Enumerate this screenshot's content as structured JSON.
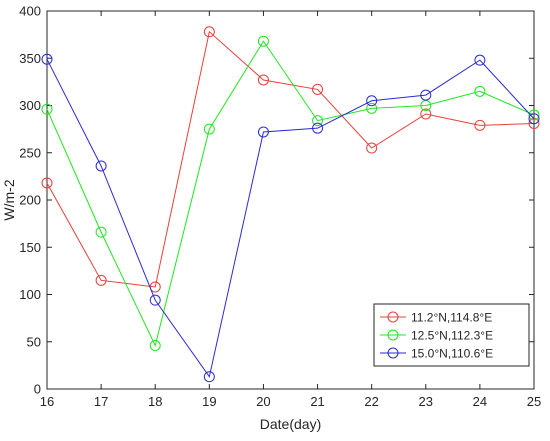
{
  "chart_data": {
    "type": "line",
    "title": "",
    "xlabel": "Date(day)",
    "ylabel": "W/m-2",
    "xlim": [
      16,
      25
    ],
    "ylim": [
      0,
      400
    ],
    "x": [
      16,
      17,
      18,
      19,
      20,
      21,
      22,
      23,
      24,
      25
    ],
    "xticks": [
      "16",
      "17",
      "18",
      "19",
      "20",
      "21",
      "22",
      "23",
      "24",
      "25"
    ],
    "yticks": [
      "0",
      "50",
      "100",
      "150",
      "200",
      "250",
      "300",
      "350",
      "400"
    ],
    "grid": false,
    "legend_position": "bottom-right",
    "marker": "open-circle",
    "series": [
      {
        "name": "11.2°N,114.8°E",
        "color": "#e8403a",
        "values": [
          218,
          115,
          108,
          378,
          327,
          317,
          255,
          291,
          279,
          281
        ]
      },
      {
        "name": "12.5°N,112.3°E",
        "color": "#1ee81e",
        "values": [
          296,
          166,
          46,
          275,
          368,
          284,
          297,
          300,
          315,
          290
        ]
      },
      {
        "name": "15.0°N,110.6°E",
        "color": "#2a2ad4",
        "values": [
          349,
          236,
          94,
          13,
          272,
          276,
          305,
          311,
          348,
          286
        ]
      }
    ]
  }
}
